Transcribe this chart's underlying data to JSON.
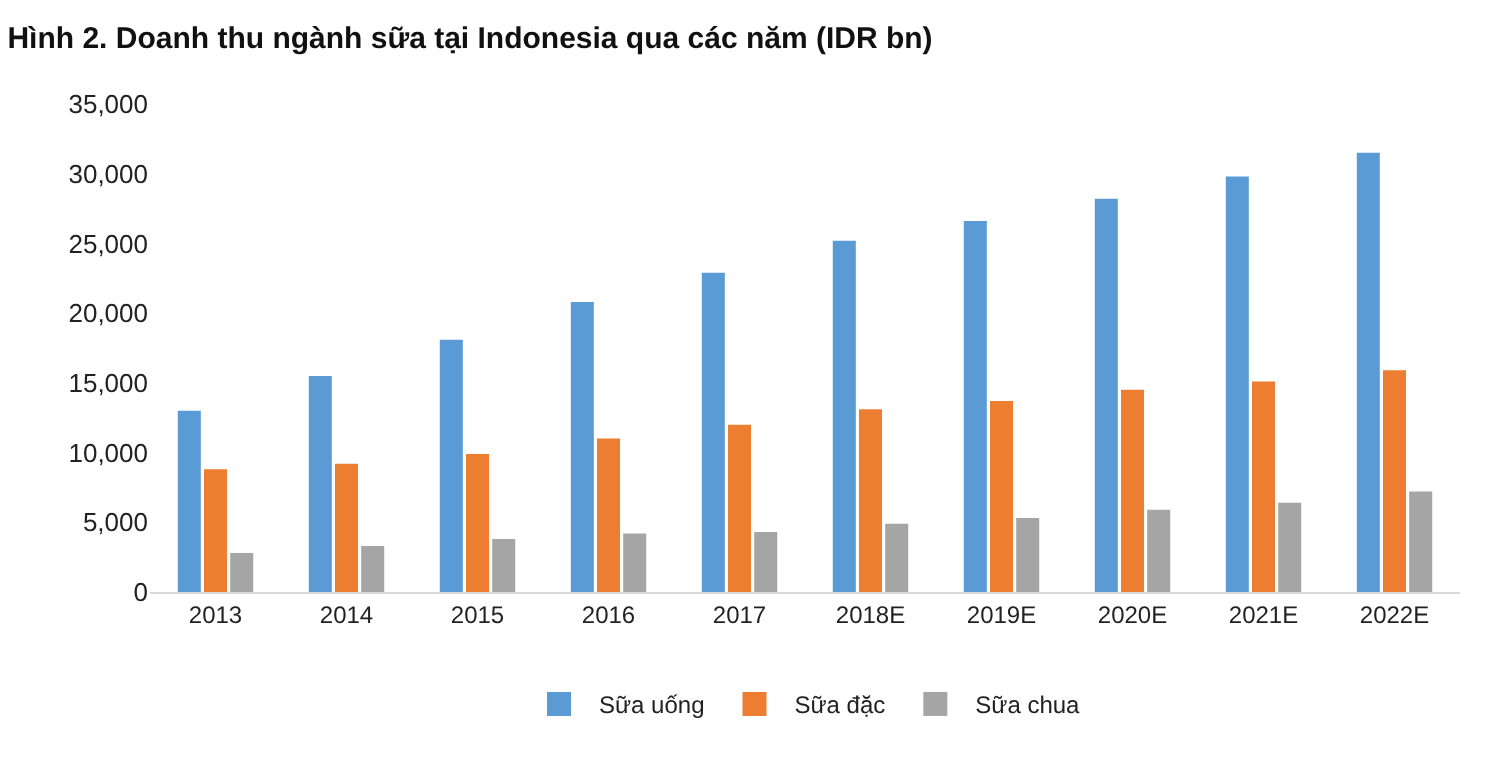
{
  "chart_data": {
    "type": "bar",
    "title": "Hình 2. Doanh thu ngành sữa tại Indonesia qua các năm (IDR bn)",
    "categories": [
      "2013",
      "2014",
      "2015",
      "2016",
      "2017",
      "2018E",
      "2019E",
      "2020E",
      "2021E",
      "2022E"
    ],
    "series": [
      {
        "name": "Sữa uống",
        "color": "#5b9bd5",
        "values": [
          13000,
          15500,
          18100,
          20800,
          22900,
          25200,
          26600,
          28200,
          29800,
          31500
        ]
      },
      {
        "name": "Sữa đặc",
        "color": "#ed7d31",
        "values": [
          8800,
          9200,
          9900,
          11000,
          12000,
          13100,
          13700,
          14500,
          15100,
          15900
        ]
      },
      {
        "name": "Sữa chua",
        "color": "#a5a5a5",
        "values": [
          2800,
          3300,
          3800,
          4200,
          4300,
          4900,
          5300,
          5900,
          6400,
          7200
        ]
      }
    ],
    "ylim": [
      0,
      35000
    ],
    "yticks": [
      {
        "value": 0,
        "label": "0"
      },
      {
        "value": 5000,
        "label": "5,000"
      },
      {
        "value": 10000,
        "label": "10,000"
      },
      {
        "value": 15000,
        "label": "15,000"
      },
      {
        "value": 20000,
        "label": "20,000"
      },
      {
        "value": 25000,
        "label": "25,000"
      },
      {
        "value": 30000,
        "label": "30,000"
      },
      {
        "value": 35000,
        "label": "35,000"
      }
    ],
    "grid": false,
    "legend": "bottom"
  }
}
